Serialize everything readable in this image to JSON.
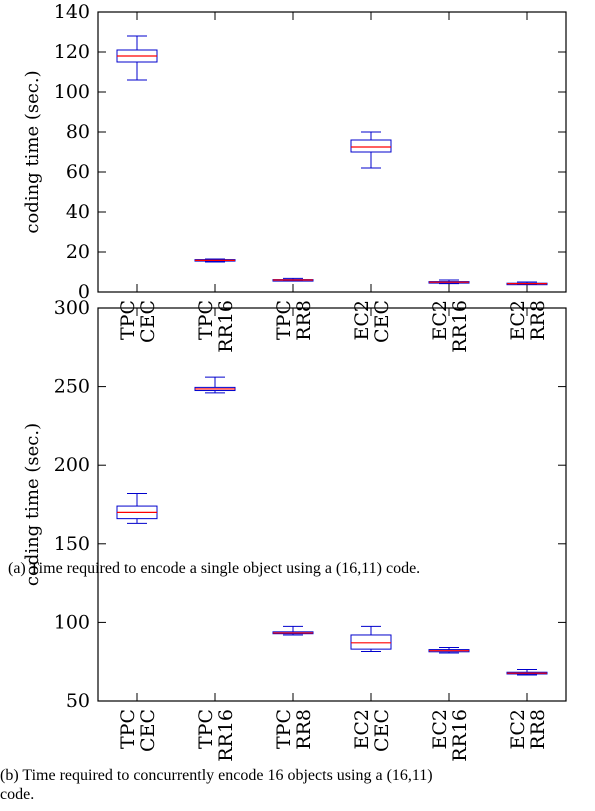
{
  "captions": {
    "a": "(a) Time required to encode a single object using a (16,11) code.",
    "b_line1": "(b) Time required to concurrently encode 16 objects using a (16,11)",
    "b_line2": "code."
  },
  "colors": {
    "box": "#0000cc",
    "median": "#ff0000",
    "whisker": "#0000cc",
    "axis": "#000000"
  },
  "chart_data": [
    {
      "type": "boxplot",
      "ylabel": "coding time (sec.)",
      "ylim": [
        0,
        140
      ],
      "yticks": [
        "0",
        "20",
        "40",
        "60",
        "80",
        "100",
        "120",
        "140"
      ],
      "categories": [
        [
          "TPC",
          "CEC"
        ],
        [
          "TPC",
          "RR16"
        ],
        [
          "TPC",
          "RR8"
        ],
        [
          "EC2",
          "CEC"
        ],
        [
          "EC2",
          "RR16"
        ],
        [
          "EC2",
          "RR8"
        ]
      ],
      "boxes": [
        {
          "min": 106,
          "q1": 115,
          "median": 118,
          "q3": 121,
          "max": 128
        },
        {
          "min": 15,
          "q1": 15.5,
          "median": 15.8,
          "q3": 16.2,
          "max": 16.5
        },
        {
          "min": 5.5,
          "q1": 5.8,
          "median": 6,
          "q3": 6.2,
          "max": 6.8
        },
        {
          "min": 62,
          "q1": 70,
          "median": 72.5,
          "q3": 76,
          "max": 80
        },
        {
          "min": 4.2,
          "q1": 4.6,
          "median": 4.9,
          "q3": 5.2,
          "max": 6
        },
        {
          "min": 3.8,
          "q1": 4,
          "median": 4.2,
          "q3": 4.4,
          "max": 5
        }
      ]
    },
    {
      "type": "boxplot",
      "ylabel": "coding time (sec.)",
      "ylim": [
        50,
        300
      ],
      "yticks": [
        "50",
        "100",
        "150",
        "200",
        "250",
        "300"
      ],
      "categories": [
        [
          "TPC",
          "CEC"
        ],
        [
          "TPC",
          "RR16"
        ],
        [
          "TPC",
          "RR8"
        ],
        [
          "EC2",
          "CEC"
        ],
        [
          "EC2",
          "RR16"
        ],
        [
          "EC2",
          "RR8"
        ]
      ],
      "boxes": [
        {
          "min": 163,
          "q1": 166,
          "median": 170,
          "q3": 174,
          "max": 182
        },
        {
          "min": 246,
          "q1": 247.5,
          "median": 248.5,
          "q3": 249.5,
          "max": 256
        },
        {
          "min": 92,
          "q1": 92.8,
          "median": 93.3,
          "q3": 94,
          "max": 97.5
        },
        {
          "min": 81.5,
          "q1": 83,
          "median": 87,
          "q3": 92,
          "max": 97.5
        },
        {
          "min": 80.5,
          "q1": 81.3,
          "median": 82,
          "q3": 82.7,
          "max": 84
        },
        {
          "min": 66.5,
          "q1": 67.2,
          "median": 67.7,
          "q3": 68.3,
          "max": 70
        }
      ]
    }
  ]
}
